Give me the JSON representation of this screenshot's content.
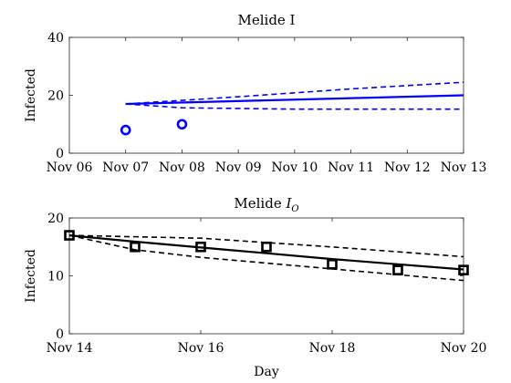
{
  "chart_data": [
    {
      "type": "line",
      "title_text": "Melide I",
      "title_sub": "",
      "xlabel": "",
      "ylabel": "Infected",
      "ylim": [
        0,
        40
      ],
      "yticks": [
        0,
        20,
        40
      ],
      "xlim": [
        "2020-11-06",
        "2020-11-13"
      ],
      "xticks": [
        "2020-11-06",
        "2020-11-07",
        "2020-11-08",
        "2020-11-09",
        "2020-11-10",
        "2020-11-11",
        "2020-11-12",
        "2020-11-13"
      ],
      "xtick_labels": [
        "Nov 06",
        "Nov 07",
        "Nov 08",
        "Nov 09",
        "Nov 10",
        "Nov 11",
        "Nov 12",
        "Nov 13"
      ],
      "color": "#0000ff",
      "marker": "circle",
      "observed": [
        {
          "x": "2020-11-07",
          "y": 8
        },
        {
          "x": "2020-11-08",
          "y": 10
        }
      ],
      "fit": [
        {
          "x": "2020-11-07",
          "y": 17
        },
        {
          "x": "2020-11-13",
          "y": 20
        }
      ],
      "upper": [
        {
          "x": "2020-11-07",
          "y": 17
        },
        {
          "x": "2020-11-09",
          "y": 19.5
        },
        {
          "x": "2020-11-11",
          "y": 22.2
        },
        {
          "x": "2020-11-13",
          "y": 24.5
        }
      ],
      "lower": [
        {
          "x": "2020-11-07",
          "y": 17
        },
        {
          "x": "2020-11-08",
          "y": 15.7
        },
        {
          "x": "2020-11-10",
          "y": 15.2
        },
        {
          "x": "2020-11-13",
          "y": 15.2
        }
      ]
    },
    {
      "type": "line",
      "title_text": "Melide I",
      "title_sub": "O",
      "xlabel": "Day",
      "ylabel": "Infected",
      "ylim": [
        0,
        20
      ],
      "yticks": [
        0,
        10,
        20
      ],
      "xlim": [
        "2020-11-14",
        "2020-11-20"
      ],
      "xticks": [
        "2020-11-14",
        "2020-11-16",
        "2020-11-18",
        "2020-11-20"
      ],
      "xtick_labels": [
        "Nov 14",
        "Nov 16",
        "Nov 18",
        "Nov 20"
      ],
      "color": "#000000",
      "marker": "square",
      "observed": [
        {
          "x": "2020-11-14",
          "y": 17
        },
        {
          "x": "2020-11-15",
          "y": 15
        },
        {
          "x": "2020-11-16",
          "y": 15
        },
        {
          "x": "2020-11-17",
          "y": 15
        },
        {
          "x": "2020-11-18",
          "y": 12
        },
        {
          "x": "2020-11-19",
          "y": 11
        },
        {
          "x": "2020-11-20",
          "y": 11
        }
      ],
      "fit": [
        {
          "x": "2020-11-14",
          "y": 17
        },
        {
          "x": "2020-11-15",
          "y": 15.9
        },
        {
          "x": "2020-11-16",
          "y": 14.9
        },
        {
          "x": "2020-11-17",
          "y": 13.9
        },
        {
          "x": "2020-11-18",
          "y": 12.9
        },
        {
          "x": "2020-11-19",
          "y": 12.0
        },
        {
          "x": "2020-11-20",
          "y": 11.1
        }
      ],
      "upper": [
        {
          "x": "2020-11-14",
          "y": 17
        },
        {
          "x": "2020-11-16",
          "y": 16.5
        },
        {
          "x": "2020-11-18",
          "y": 15.0
        },
        {
          "x": "2020-11-20",
          "y": 13.3
        }
      ],
      "lower": [
        {
          "x": "2020-11-14",
          "y": 17
        },
        {
          "x": "2020-11-15",
          "y": 14.5
        },
        {
          "x": "2020-11-16",
          "y": 13.2
        },
        {
          "x": "2020-11-18",
          "y": 11.2
        },
        {
          "x": "2020-11-20",
          "y": 9.2
        }
      ]
    }
  ]
}
